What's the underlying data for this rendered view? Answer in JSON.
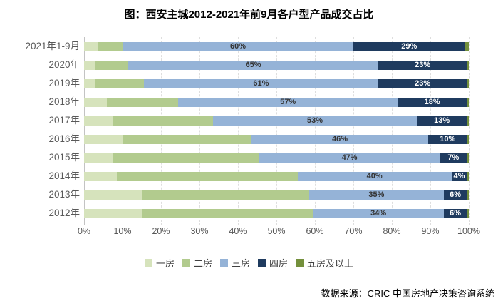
{
  "title": "图：西安主城2012-2021年前9月各户型产品成交占比",
  "source": "数据来源：CRIC 中国房地产决策咨询系统",
  "chart_data": {
    "type": "bar",
    "orientation": "horizontal",
    "stacked": true,
    "title": "图：西安主城2012-2021年前9月各户型产品成交占比",
    "categories": [
      "2021年1-9月",
      "2020年",
      "2019年",
      "2018年",
      "2017年",
      "2016年",
      "2015年",
      "2014年",
      "2013年",
      "2012年"
    ],
    "series": [
      {
        "name": "一房",
        "color": "#d6e3bc",
        "labels_shown": false,
        "values": [
          3.5,
          3,
          3,
          6,
          7.5,
          10,
          7.5,
          8.5,
          15,
          15
        ]
      },
      {
        "name": "二房",
        "color": "#b2cb8e",
        "labels_shown": false,
        "values": [
          6.5,
          8.5,
          12.5,
          18.5,
          26,
          33.5,
          38,
          47,
          43.5,
          44.5
        ]
      },
      {
        "name": "三房",
        "color": "#95b3d7",
        "labels_shown": true,
        "label_color": "#333333",
        "values": [
          60,
          65,
          61,
          57,
          53,
          46,
          47,
          40,
          35,
          34
        ]
      },
      {
        "name": "四房",
        "color": "#1f3b5f",
        "labels_shown": true,
        "label_color": "#ffffff",
        "values": [
          29,
          23,
          23,
          18,
          13,
          10,
          7,
          4,
          6,
          6
        ]
      },
      {
        "name": "五房及以上",
        "color": "#74903c",
        "labels_shown": false,
        "values": [
          1,
          0.5,
          0.5,
          0.5,
          0.5,
          0.5,
          0.5,
          0.5,
          0.5,
          0.5
        ]
      }
    ],
    "x_ticks": [
      "0%",
      "10%",
      "20%",
      "30%",
      "40%",
      "50%",
      "60%",
      "70%",
      "80%",
      "90%",
      "100%"
    ],
    "xlim": [
      0,
      100
    ],
    "value_suffix": "%",
    "grid": "dashed-vertical",
    "legend_position": "bottom"
  }
}
